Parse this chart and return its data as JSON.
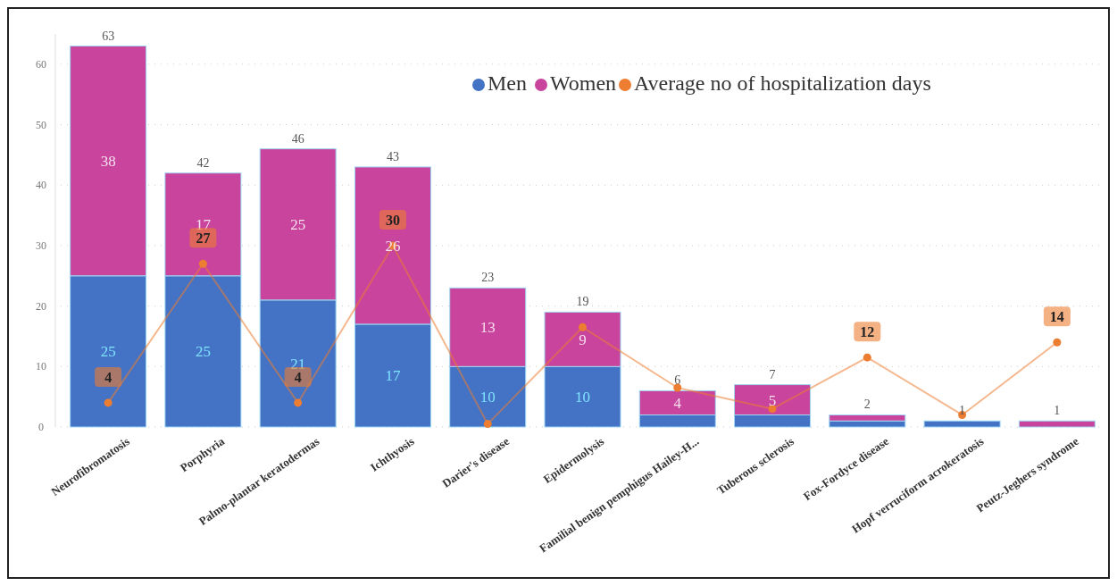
{
  "chart_data": {
    "type": "bar",
    "stacked": true,
    "categories": [
      "Neurofibromatosis",
      "Porphyria",
      "Palmo-plantar keratodermas",
      "Ichthyosis",
      "Darier's disease",
      "Epidermolysis",
      "Familial benign pemphigus Hailey-H...",
      "Tuberous sclerosis",
      "Fox-Fordyce disease",
      "Hopf verruciform acrokeratosis",
      "Peutz-Jeghers syndrome"
    ],
    "series": [
      {
        "name": "Men",
        "color": "#4472c4",
        "values": [
          25,
          25,
          21,
          17,
          10,
          10,
          2,
          2,
          1,
          1,
          0
        ],
        "value_labels": [
          "25",
          "25",
          "21",
          "17",
          "10",
          "10",
          null,
          null,
          null,
          null,
          null
        ]
      },
      {
        "name": "Women",
        "color": "#c9449c",
        "values": [
          38,
          17,
          25,
          26,
          13,
          9,
          4,
          5,
          1,
          0,
          1
        ],
        "value_labels": [
          "38",
          "17",
          "25",
          "26",
          "13",
          "9",
          "4",
          "5",
          null,
          null,
          null
        ]
      },
      {
        "name": "Average no of hospitalization days",
        "type": "line",
        "color": "#ed7d31",
        "marker": "circle",
        "values": [
          4,
          27,
          4,
          30,
          0.5,
          16.5,
          6.5,
          3,
          11.5,
          2,
          14
        ],
        "value_labels": [
          "4",
          "27",
          "4",
          "30",
          null,
          null,
          null,
          null,
          "12",
          null,
          "14"
        ]
      }
    ],
    "totals": [
      "63",
      "42",
      "46",
      "43",
      "23",
      "19",
      "6",
      "7",
      "2",
      "1",
      "1"
    ],
    "ylim": [
      0,
      65
    ],
    "yticks": [
      0,
      10,
      20,
      30,
      40,
      50,
      60
    ],
    "grid": "y",
    "legend": "top right"
  }
}
